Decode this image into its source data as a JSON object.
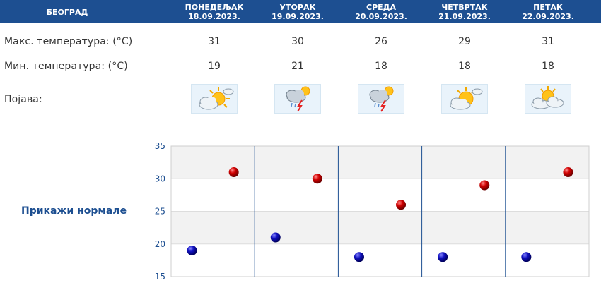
{
  "header": {
    "city": "БЕОГРАД",
    "days": [
      {
        "name": "ПОНЕДЕЉАК",
        "date": "18.09.2023."
      },
      {
        "name": "УТОРАК",
        "date": "19.09.2023."
      },
      {
        "name": "СРЕДА",
        "date": "20.09.2023."
      },
      {
        "name": "ЧЕТВРТАК",
        "date": "21.09.2023."
      },
      {
        "name": "ПЕТАК",
        "date": "22.09.2023."
      }
    ]
  },
  "rows": {
    "max_label": "Макс. температура: (°C)",
    "min_label": "Мин. температура: (°C)",
    "weather_label": "Појава:",
    "max_values": [
      "31",
      "30",
      "26",
      "29",
      "31"
    ],
    "min_values": [
      "19",
      "21",
      "18",
      "18",
      "18"
    ],
    "icons": [
      "partly-cloudy-sun-icon",
      "thunderstorm-rain-icon",
      "thunderstorm-rain-icon",
      "partly-cloudy-sun-icon",
      "sun-behind-clouds-icon"
    ]
  },
  "normals_link": "Прикажи нормале",
  "colors": {
    "header_bg": "#1d4f91",
    "max_marker": "#d00000",
    "min_marker": "#1010c0",
    "divider": "#1d4f91"
  },
  "chart_data": {
    "type": "scatter",
    "categories": [
      "18.09.2023.",
      "19.09.2023.",
      "20.09.2023.",
      "21.09.2023.",
      "22.09.2023."
    ],
    "series": [
      {
        "values": [
          31,
          30,
          26,
          29,
          31
        ]
      },
      {
        "values": [
          19,
          21,
          18,
          18,
          18
        ]
      }
    ],
    "ylim": [
      15,
      35
    ],
    "yticks": [
      "15",
      "20",
      "25",
      "30",
      "35"
    ],
    "grid": true
  }
}
